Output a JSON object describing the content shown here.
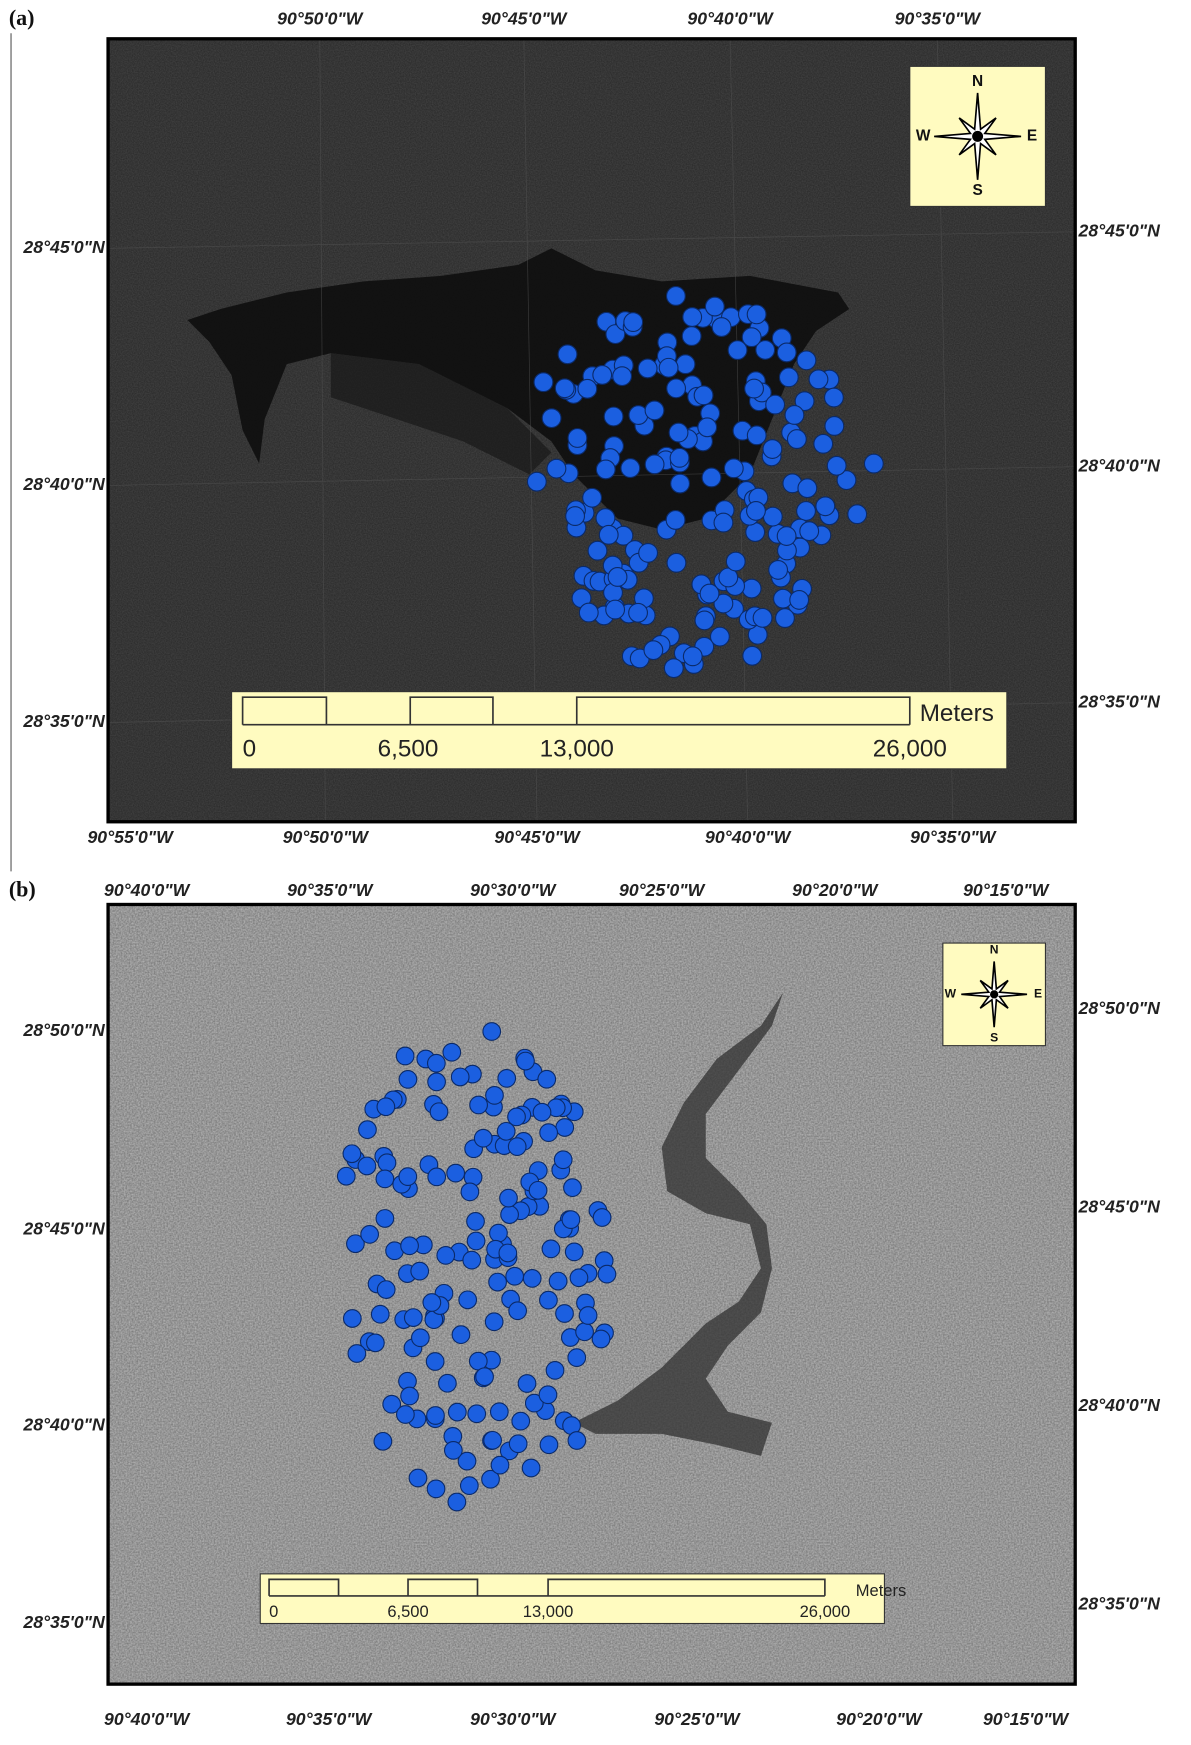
{
  "panels": [
    {
      "label": "(a)",
      "top_ticks": [
        "90°50'0\"W",
        "90°45'0\"W",
        "90°40'0\"W",
        "90°35'0\"W"
      ],
      "bottom_ticks": [
        "90°55'0\"W",
        "90°50'0\"W",
        "90°45'0\"W",
        "90°40'0\"W",
        "90°35'0\"W"
      ],
      "left_ticks": [
        "28°45'0\"N",
        "28°40'0\"N",
        "28°35'0\"N"
      ],
      "right_ticks": [
        "28°45'0\"N",
        "28°40'0\"N",
        "28°35'0\"N"
      ],
      "compass": {
        "n": "N",
        "s": "S",
        "e": "E",
        "w": "W"
      },
      "scale_bar": {
        "unit": "Meters",
        "labels": [
          "0",
          "6,500",
          "13,000",
          "26,000"
        ]
      }
    },
    {
      "label": "(b)",
      "top_ticks": [
        "90°40'0\"W",
        "90°35'0\"W",
        "90°30'0\"W",
        "90°25'0\"W",
        "90°20'0\"W",
        "90°15'0\"W"
      ],
      "bottom_ticks": [
        "90°40'0\"W",
        "90°35'0\"W",
        "90°30'0\"W",
        "90°25'0\"W",
        "90°20'0\"W",
        "90°15'0\"W"
      ],
      "left_ticks": [
        "28°50'0\"N",
        "28°45'0\"N",
        "28°40'0\"N",
        "28°35'0\"N"
      ],
      "right_ticks": [
        "28°50'0\"N",
        "28°45'0\"N",
        "28°40'0\"N",
        "28°35'0\"N"
      ],
      "compass": {
        "n": "N",
        "s": "S",
        "e": "E",
        "w": "W"
      },
      "scale_bar": {
        "unit": "Meters",
        "labels": [
          "0",
          "6,500",
          "13,000",
          "26,000"
        ]
      }
    }
  ]
}
